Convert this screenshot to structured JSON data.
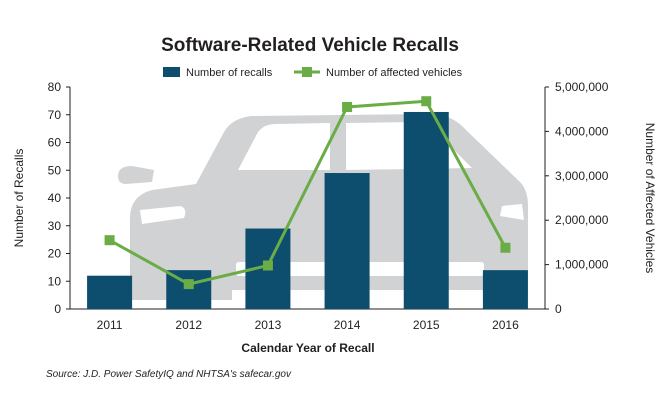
{
  "chart_data": {
    "type": "bar",
    "title": "Software-Related Vehicle Recalls",
    "xlabel": "Calendar Year of Recall",
    "ylabel": "Number of Recalls",
    "y2label": "Number of Affected Vehicles",
    "categories": [
      "2011",
      "2012",
      "2013",
      "2014",
      "2015",
      "2016"
    ],
    "ylim": [
      0,
      80
    ],
    "y_ticks": [
      "0",
      "10",
      "20",
      "30",
      "40",
      "50",
      "60",
      "70",
      "80"
    ],
    "y2lim": [
      0,
      5000000
    ],
    "y2_ticks": [
      "0",
      "1,000,000",
      "2,000,000",
      "3,000,000",
      "4,000,000",
      "5,000,000"
    ],
    "series": [
      {
        "name": "Number of recalls",
        "type": "bar",
        "axis": "left",
        "color": "#0d4d6e",
        "values": [
          12,
          14,
          29,
          49,
          71,
          14
        ]
      },
      {
        "name": "Number of affected vehicles",
        "type": "line",
        "axis": "right",
        "color": "#6aac45",
        "values": [
          1550000,
          560000,
          980000,
          4550000,
          4680000,
          1380000
        ]
      }
    ],
    "legend_position": "top",
    "grid": false,
    "background_image": "car-silhouette"
  },
  "footer": {
    "source": "Source: J.D. Power SafetyIQ and NHTSA's safecar.gov"
  }
}
